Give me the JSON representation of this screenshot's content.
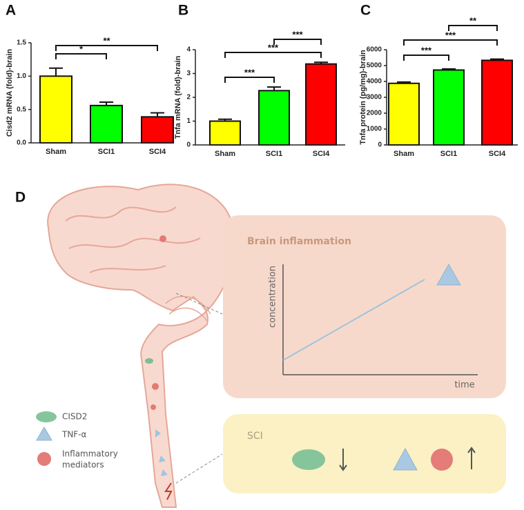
{
  "chart_data": [
    {
      "type": "bar",
      "panel": "A",
      "y_label": "Cisd2 mRNA (fold)-brain",
      "categories": [
        "Sham",
        "SCI1",
        "SCI4"
      ],
      "series": [
        {
          "values": [
            1.0,
            0.56,
            0.39
          ],
          "errors": [
            0.12,
            0.05,
            0.06
          ],
          "colors": [
            "#ffff00",
            "#00ff00",
            "#ff0000"
          ]
        }
      ],
      "ylim": [
        0,
        1.5
      ],
      "yticks": [
        {
          "value": 0,
          "label": "0.0"
        },
        0.5,
        {
          "value": 1,
          "label": "1.0"
        },
        1.5
      ],
      "annotations": [
        {
          "text": "*",
          "between": [
            "Sham",
            "SCI1"
          ]
        },
        {
          "text": "**",
          "between": [
            "Sham",
            "SCI4"
          ]
        }
      ]
    },
    {
      "type": "bar",
      "panel": "B",
      "y_label": "Tnfa mRNA (fold)-brain",
      "categories": [
        "Sham",
        "SCI1",
        "SCI4"
      ],
      "series": [
        {
          "values": [
            1.0,
            2.28,
            3.4
          ],
          "errors": [
            0.08,
            0.15,
            0.07
          ],
          "colors": [
            "#ffff00",
            "#00ff00",
            "#ff0000"
          ]
        }
      ],
      "ylim": [
        0,
        4
      ],
      "yticks": [
        0,
        1,
        2,
        3,
        4
      ],
      "annotations": [
        {
          "text": "***",
          "between": [
            "Sham",
            "SCI1"
          ]
        },
        {
          "text": "***",
          "between": [
            "SCI1",
            "SCI4"
          ]
        },
        {
          "text": "***",
          "between": [
            "Sham",
            "SCI4"
          ]
        }
      ]
    },
    {
      "type": "bar",
      "panel": "C",
      "y_label": "Tnfa protein (pg/mg)-brain",
      "categories": [
        "Sham",
        "SCI1",
        "SCI4"
      ],
      "series": [
        {
          "values": [
            3880,
            4720,
            5330
          ],
          "errors": [
            80,
            70,
            80
          ],
          "colors": [
            "#ffff00",
            "#00ff00",
            "#ff0000"
          ]
        }
      ],
      "ylim": [
        0,
        6000
      ],
      "yticks": [
        0,
        1000,
        2000,
        3000,
        4000,
        5000,
        6000
      ],
      "annotations": [
        {
          "text": "***",
          "between": [
            "Sham",
            "SCI1"
          ]
        },
        {
          "text": "***",
          "between": [
            "Sham",
            "SCI4"
          ]
        },
        {
          "text": "**",
          "between": [
            "SCI1",
            "SCI4"
          ]
        }
      ]
    }
  ],
  "diagram": {
    "panel": "D",
    "inflammation_box": {
      "title": "Brain inflammation",
      "y_label": "concentration",
      "x_label": "time"
    },
    "sci_box": {
      "title": "SCI"
    },
    "legend": [
      {
        "label": "CISD2"
      },
      {
        "label": "TNF-α"
      },
      {
        "lines": [
          "Inflammatory",
          "mediators"
        ]
      }
    ]
  }
}
